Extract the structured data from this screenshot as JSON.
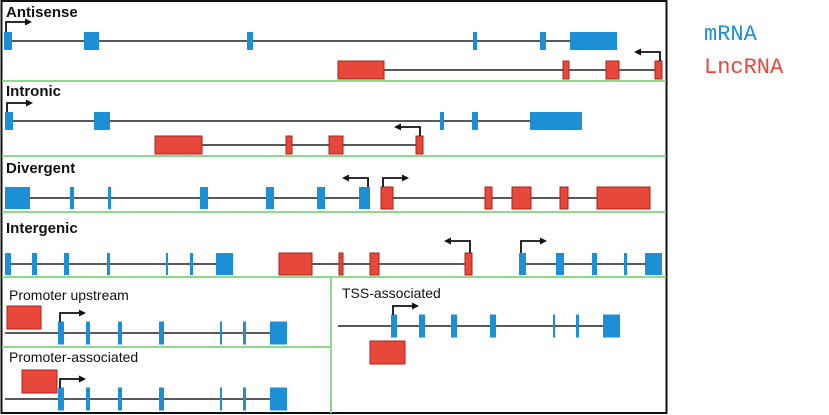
{
  "panels": [
    {
      "label": "Antisense"
    },
    {
      "label": "Intronic"
    },
    {
      "label": "Divergent"
    },
    {
      "label": "Intergenic"
    },
    {
      "label": "Promoter upstream"
    },
    {
      "label": "Promoter-associated"
    },
    {
      "label": "TSS-associated"
    }
  ],
  "legend": {
    "items": [
      {
        "label": "mRNA",
        "color": "#1c8fd6"
      },
      {
        "label": "LncRNA",
        "color": "#e8473c"
      }
    ]
  },
  "colors": {
    "mrna": "#1c8fd6",
    "lncrna": "#e8473c",
    "separator": "#8fd98f",
    "intron": "#222222"
  }
}
